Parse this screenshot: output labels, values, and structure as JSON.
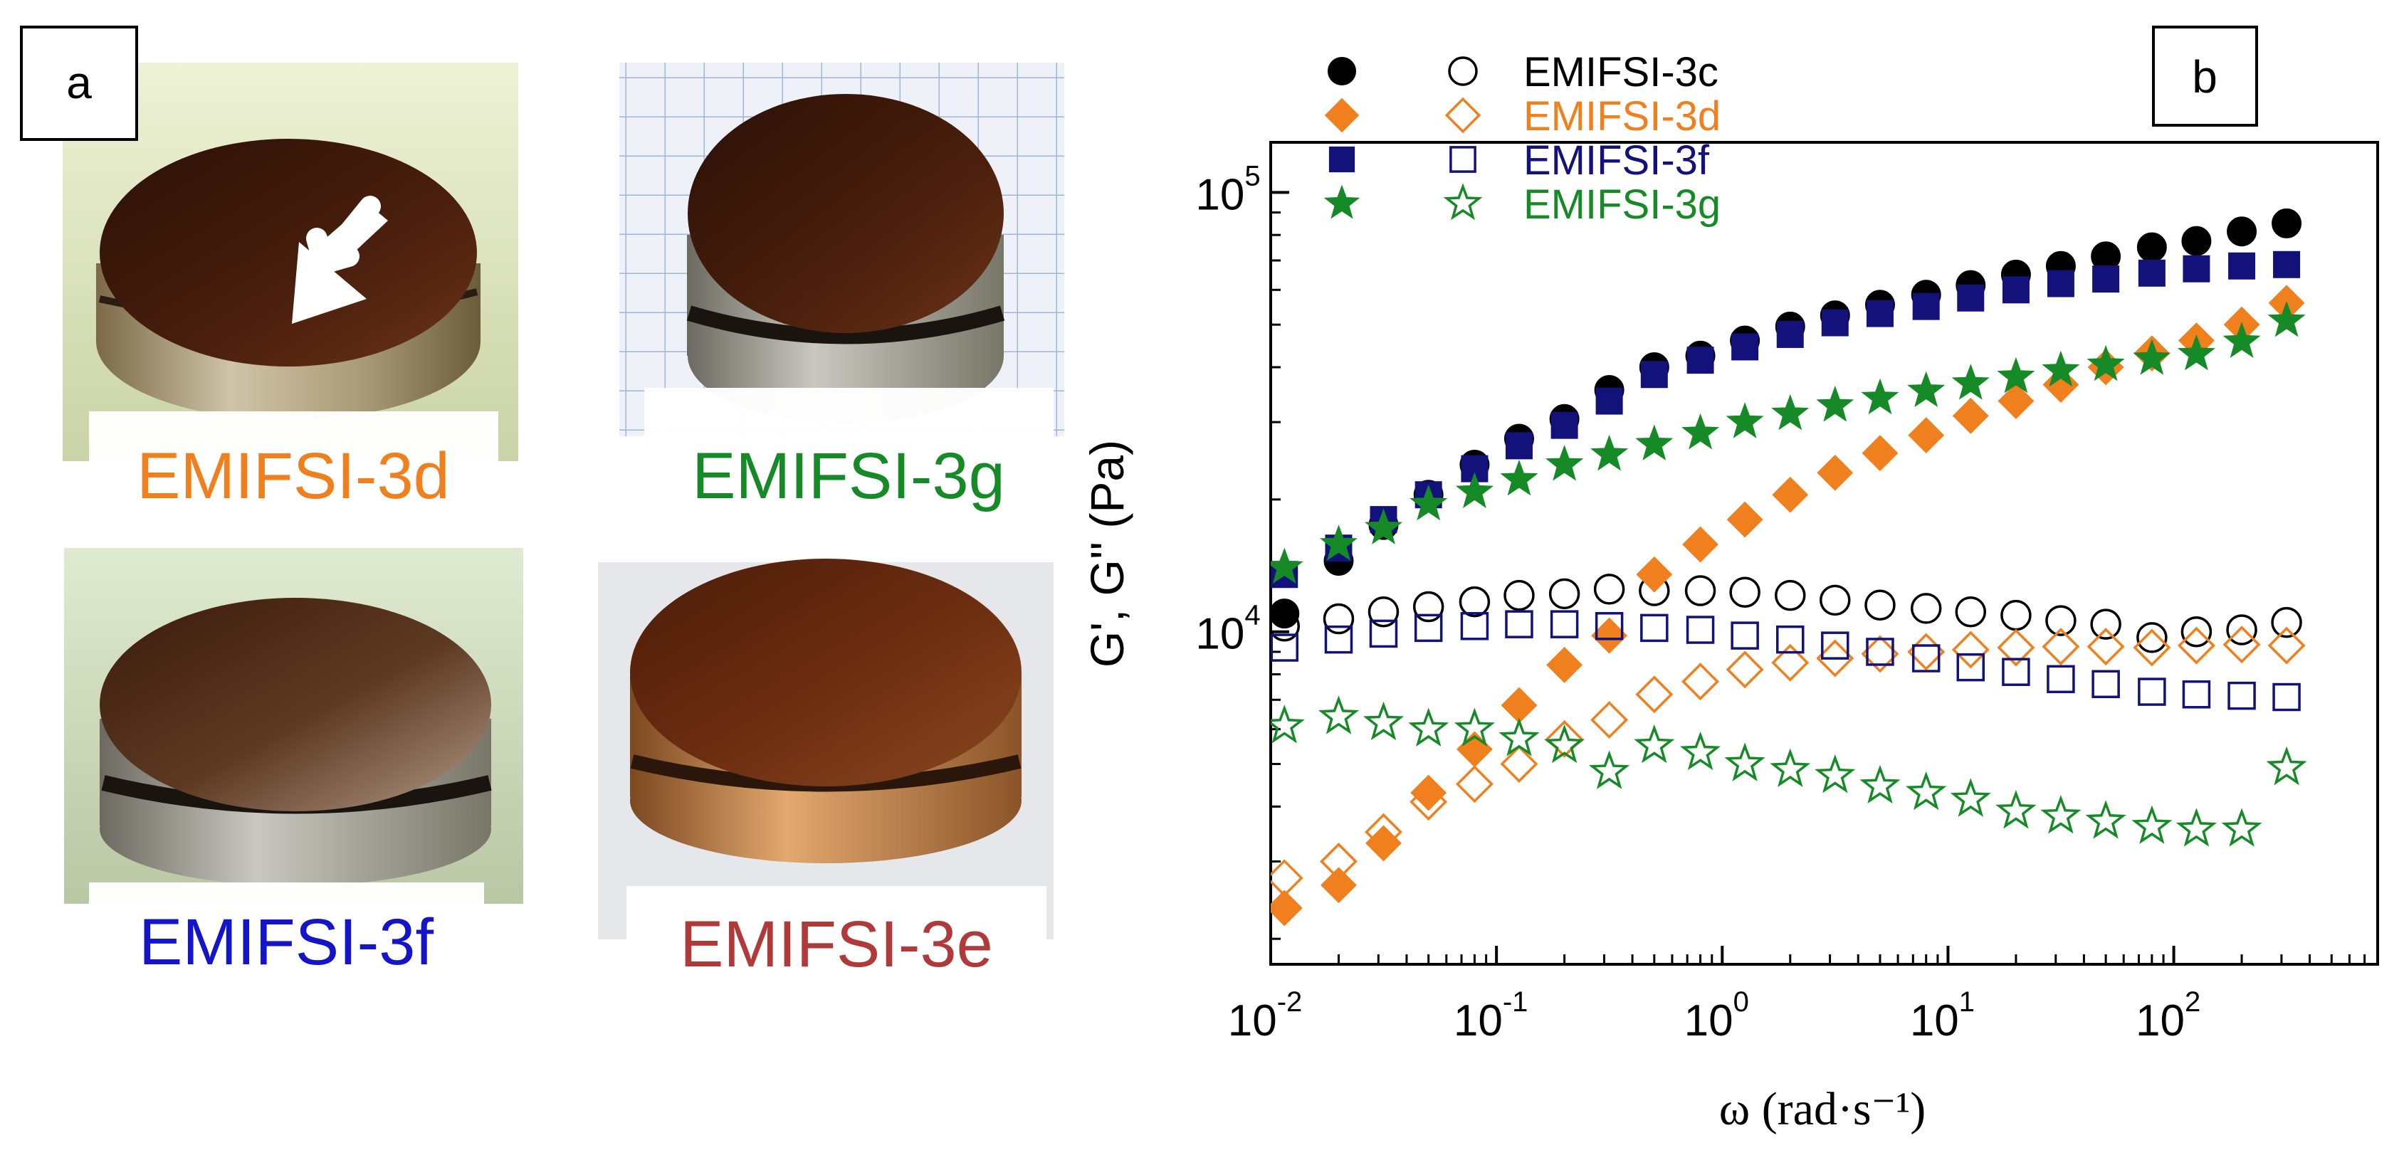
{
  "panel_a": {
    "label": "a",
    "photos": [
      {
        "caption": "EMIFSI-3d",
        "color": "#f07f1e"
      },
      {
        "caption": "EMIFSI-3g",
        "color": "#158a26"
      },
      {
        "caption": "EMIFSI-3f",
        "color": "#1414c8"
      },
      {
        "caption": "EMIFSI-3e",
        "color": "#b03a3a"
      }
    ]
  },
  "chart_data": {
    "type": "scatter",
    "panel_label": "b",
    "xlabel": "ω (rad·s⁻¹)",
    "ylabel": "G', G'' (Pa)",
    "xscale": "log",
    "yscale": "log",
    "xlim": [
      0.01,
      800
    ],
    "ylim": [
      1750,
      130000
    ],
    "xticks": [
      {
        "value": 0.01,
        "base": "10",
        "exp": "-2"
      },
      {
        "value": 0.1,
        "base": "10",
        "exp": "-1"
      },
      {
        "value": 1,
        "base": "10",
        "exp": "0"
      },
      {
        "value": 10,
        "base": "10",
        "exp": "1"
      },
      {
        "value": 100,
        "base": "10",
        "exp": "2"
      }
    ],
    "yticks": [
      {
        "value": 10000,
        "base": "10",
        "exp": "4"
      },
      {
        "value": 100000,
        "base": "10",
        "exp": "5"
      }
    ],
    "legend_position": "top-left",
    "legend": [
      {
        "label": "EMIFSI-3c",
        "color": "#000000"
      },
      {
        "label": "EMIFSI-3d",
        "color": "#f07f1e"
      },
      {
        "label": "EMIFSI-3f",
        "color": "#12127a"
      },
      {
        "label": "EMIFSI-3g",
        "color": "#158a26"
      }
    ],
    "x": [
      0.0115,
      0.02,
      0.0316,
      0.05,
      0.08,
      0.126,
      0.2,
      0.316,
      0.5,
      0.8,
      1.26,
      2,
      3.16,
      5,
      8,
      12.6,
      20,
      31.6,
      50,
      80,
      126,
      200,
      316
    ],
    "series": [
      {
        "name": "EMIFSI-3c G'",
        "marker": "circle",
        "filled": true,
        "color": "#000000",
        "values": [
          11000,
          14500,
          17500,
          20500,
          24000,
          27500,
          30500,
          35500,
          40000,
          42500,
          46000,
          49500,
          52500,
          55500,
          58500,
          61500,
          65000,
          68000,
          71500,
          75000,
          77500,
          81500,
          85000
        ]
      },
      {
        "name": "EMIFSI-3c G''",
        "marker": "circle",
        "filled": false,
        "color": "#000000",
        "values": [
          10300,
          10700,
          11100,
          11400,
          11700,
          12100,
          12200,
          12500,
          12400,
          12400,
          12300,
          12100,
          11800,
          11500,
          11300,
          11100,
          10900,
          10600,
          10400,
          9700,
          10000,
          10100,
          10500
        ]
      },
      {
        "name": "EMIFSI-3d G'",
        "marker": "diamond",
        "filled": true,
        "color": "#f07f1e",
        "values": [
          2350,
          2650,
          3300,
          4300,
          5400,
          6800,
          8400,
          9800,
          13500,
          15800,
          18000,
          20500,
          23000,
          25500,
          28000,
          31000,
          33500,
          36500,
          40000,
          43000,
          46000,
          50000,
          56000
        ]
      },
      {
        "name": "EMIFSI-3d G''",
        "marker": "diamond",
        "filled": false,
        "color": "#f07f1e",
        "values": [
          2750,
          3000,
          3500,
          4100,
          4500,
          5000,
          5700,
          6300,
          7200,
          7700,
          8200,
          8500,
          8700,
          8900,
          9000,
          9100,
          9200,
          9250,
          9250,
          9200,
          9300,
          9350,
          9300
        ]
      },
      {
        "name": "EMIFSI-3f G'",
        "marker": "square",
        "filled": true,
        "color": "#12127a",
        "values": [
          13500,
          15500,
          18000,
          20500,
          23500,
          26500,
          29500,
          33500,
          38500,
          41500,
          44500,
          47500,
          50500,
          53000,
          55000,
          57500,
          60000,
          62000,
          63500,
          65500,
          67000,
          68000,
          68500
        ]
      },
      {
        "name": "EMIFSI-3f G''",
        "marker": "square",
        "filled": false,
        "color": "#12127a",
        "values": [
          9200,
          9600,
          9900,
          10200,
          10300,
          10400,
          10400,
          10300,
          10200,
          10100,
          9800,
          9600,
          9300,
          9000,
          8700,
          8300,
          8100,
          7800,
          7600,
          7300,
          7200,
          7150,
          7100
        ]
      },
      {
        "name": "EMIFSI-3g G'",
        "marker": "star",
        "filled": true,
        "color": "#158a26",
        "values": [
          14000,
          15800,
          17200,
          19500,
          20800,
          22200,
          24000,
          25300,
          26700,
          28300,
          30000,
          31300,
          32700,
          34000,
          35300,
          36700,
          38000,
          39300,
          40500,
          41800,
          42800,
          45700,
          51000
        ]
      },
      {
        "name": "EMIFSI-3g G''",
        "marker": "star",
        "filled": false,
        "color": "#158a26",
        "values": [
          6100,
          6400,
          6200,
          6000,
          6000,
          5700,
          5500,
          4800,
          5500,
          5300,
          5000,
          4850,
          4700,
          4450,
          4300,
          4150,
          3900,
          3800,
          3700,
          3600,
          3550,
          3550,
          4900
        ]
      }
    ]
  }
}
